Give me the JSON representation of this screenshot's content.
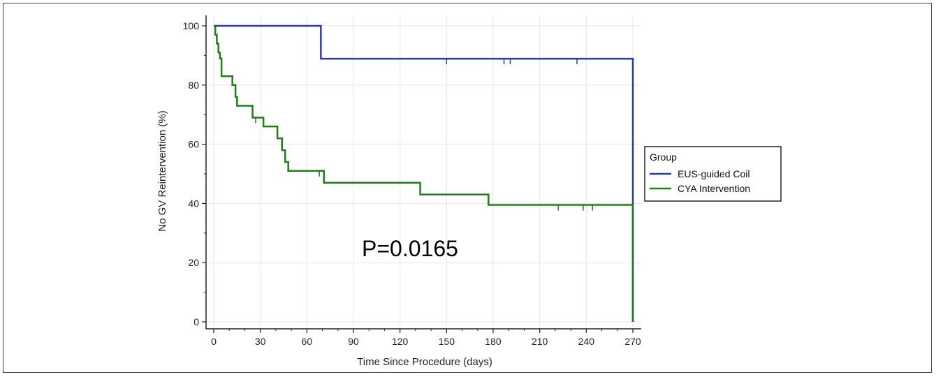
{
  "chart_data": {
    "type": "line",
    "subtype": "kaplan-meier step",
    "xlabel": "Time Since Procedure (days)",
    "ylabel": "No GV Reintervention (%)",
    "xlim": [
      0,
      270
    ],
    "ylim": [
      0,
      100
    ],
    "xticks": [
      0,
      30,
      60,
      90,
      120,
      150,
      180,
      210,
      240,
      270
    ],
    "yticks": [
      0,
      20,
      40,
      60,
      80,
      100
    ],
    "grid": true,
    "legend": {
      "title": "Group",
      "placement": "right",
      "entries": [
        "EUS-guided Coil",
        "CYA Intervention"
      ]
    },
    "annotation": "P=0.0165",
    "series": [
      {
        "name": "EUS-guided Coil",
        "color": "#2e3aa8",
        "steps": [
          [
            0,
            100
          ],
          [
            69,
            88.9
          ],
          [
            270,
            0
          ]
        ],
        "end": 270,
        "censored": [
          [
            150,
            88.9
          ],
          [
            187,
            88.9
          ],
          [
            191,
            88.9
          ],
          [
            234,
            88.9
          ]
        ]
      },
      {
        "name": "CYA Intervention",
        "color": "#247a1f",
        "steps": [
          [
            0,
            100
          ],
          [
            1,
            97
          ],
          [
            2,
            94
          ],
          [
            3,
            91
          ],
          [
            4,
            89
          ],
          [
            5,
            83
          ],
          [
            12,
            80
          ],
          [
            14,
            76
          ],
          [
            15,
            73
          ],
          [
            25,
            69
          ],
          [
            32,
            66
          ],
          [
            41,
            62
          ],
          [
            44,
            58
          ],
          [
            46,
            54
          ],
          [
            48,
            51
          ],
          [
            71,
            47
          ],
          [
            133,
            43
          ],
          [
            177,
            39.5
          ],
          [
            270,
            0
          ]
        ],
        "end": 270,
        "censored": [
          [
            27,
            69
          ],
          [
            68,
            51
          ],
          [
            222,
            39.5
          ],
          [
            238,
            39.5
          ],
          [
            244,
            39.5
          ]
        ]
      }
    ]
  }
}
